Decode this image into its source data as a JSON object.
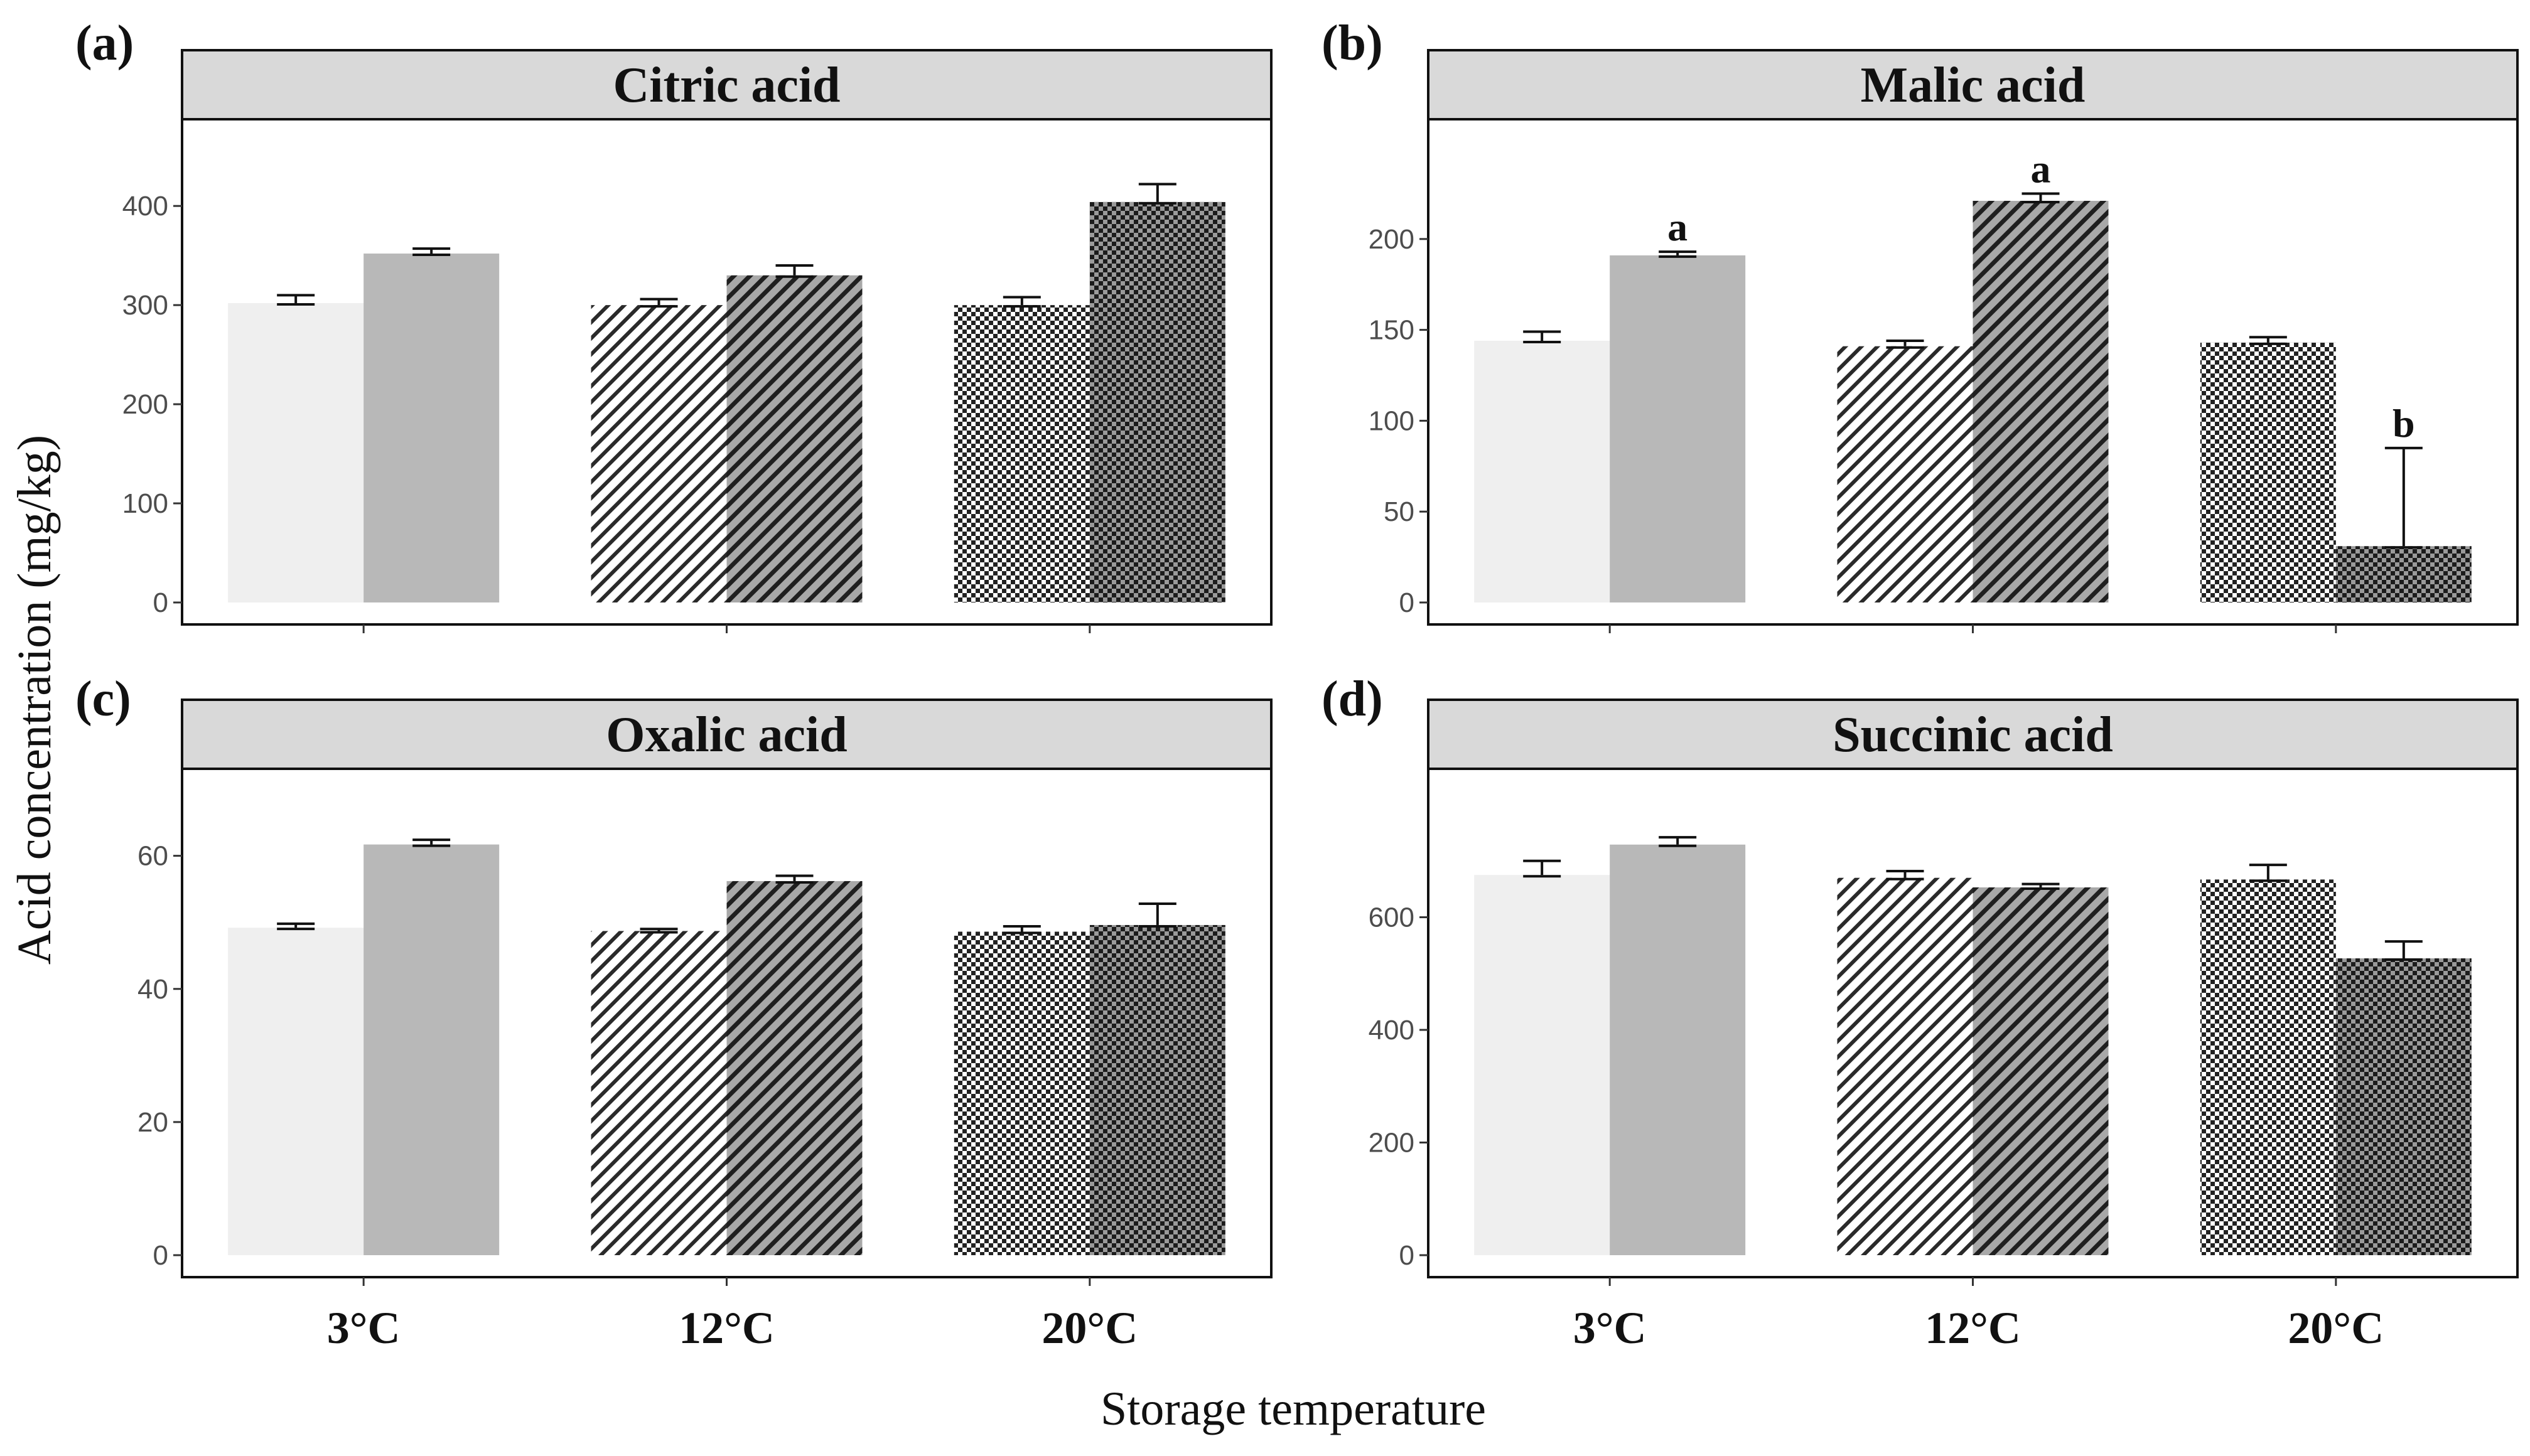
{
  "figure": {
    "ylabel": "Acid concentration (mg/kg)",
    "xlabel": "Storage temperature"
  },
  "colors": {
    "group1_fill": "#efefef",
    "group2_fill": "#b8b8b8",
    "strip_fill": "#d9d9d9",
    "ink": "#111111"
  },
  "chart_data": [
    {
      "type": "bar",
      "panel": "(a)",
      "title": "Citric acid",
      "categories": [
        "3°C",
        "12°C",
        "20°C"
      ],
      "ylim": [
        0,
        440
      ],
      "yticks": [
        0,
        100,
        200,
        300,
        400
      ],
      "series": [
        {
          "values": [
            302,
            300,
            300
          ],
          "errors": [
            8,
            6,
            8
          ]
        },
        {
          "values": [
            352,
            330,
            404
          ],
          "errors": [
            5,
            10,
            18
          ]
        }
      ],
      "annotations": []
    },
    {
      "type": "bar",
      "panel": "(b)",
      "title": "Malic acid",
      "categories": [
        "3°C",
        "12°C",
        "20°C"
      ],
      "ylim": [
        0,
        240
      ],
      "yticks": [
        0,
        50,
        100,
        150,
        200
      ],
      "series": [
        {
          "values": [
            144,
            141,
            143
          ],
          "errors": [
            5,
            3,
            3
          ]
        },
        {
          "values": [
            191,
            221,
            31
          ],
          "errors": [
            2,
            4,
            54
          ]
        }
      ],
      "annotations": [
        {
          "series": 1,
          "category": 0,
          "text": "a"
        },
        {
          "series": 1,
          "category": 1,
          "text": "a"
        },
        {
          "series": 1,
          "category": 2,
          "text": "b"
        }
      ]
    },
    {
      "type": "bar",
      "panel": "(c)",
      "title": "Oxalic acid",
      "categories": [
        "3°C",
        "12°C",
        "20°C"
      ],
      "ylim": [
        0,
        66
      ],
      "yticks": [
        0,
        20,
        40,
        60
      ],
      "series": [
        {
          "values": [
            49.2,
            48.7,
            48.6
          ],
          "errors": [
            0.6,
            0.3,
            0.8
          ]
        },
        {
          "values": [
            61.7,
            56.2,
            49.6
          ],
          "errors": [
            0.7,
            0.8,
            3.2
          ]
        }
      ],
      "annotations": []
    },
    {
      "type": "bar",
      "panel": "(d)",
      "title": "Succinic acid",
      "categories": [
        "3°C",
        "12°C",
        "20°C"
      ],
      "ylim": [
        0,
        780
      ],
      "yticks": [
        0,
        200,
        400,
        600
      ],
      "series": [
        {
          "values": [
            675,
            670,
            667
          ],
          "errors": [
            25,
            12,
            26
          ]
        },
        {
          "values": [
            729,
            653,
            527
          ],
          "errors": [
            13,
            6,
            30
          ]
        }
      ],
      "annotations": []
    }
  ]
}
